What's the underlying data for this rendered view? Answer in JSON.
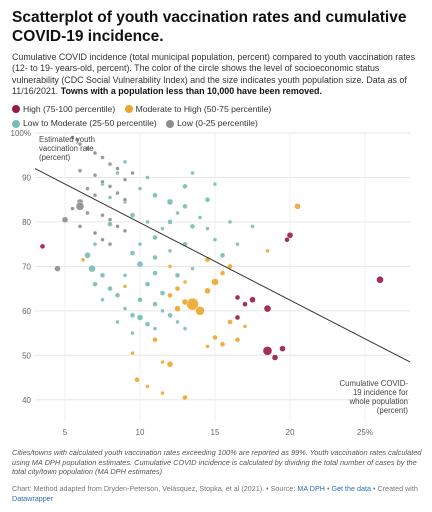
{
  "title": "Scatterplot of youth vaccination rates and cumulative COVID-19 incidence.",
  "description": "Cumulative COVID incidence (total municipal population, percent) compared to youth vaccination rates (12- to 19- years-old, percent). The color of the circle shows the level of socioeconomic status vulnerability (CDC Social Vulnerability Index) and the size indicates youth population size. Data as of 11/16/2021.",
  "description_bold": "Towns with a population less than 10,000 have been removed.",
  "legend": [
    {
      "label": "High (75-100 percentile)",
      "color": "#9b1746"
    },
    {
      "label": "Moderate to High (50-75 percentile)",
      "color": "#eda52b"
    },
    {
      "label": "Low to Moderate (25-50 percentile)",
      "color": "#76bdb5"
    },
    {
      "label": "Low (0-25 percentile)",
      "color": "#8d8d8d"
    }
  ],
  "notes": "Cities/towns with calculated youth vaccination rates exceeding 100% are reported as 99%. Youth vaccination rates calculated using MA DPH population estimates. Cumulative COVID incidence is calculated by dividing the total number of cases by the total city/town population (MA DPH estimates)",
  "footer": {
    "prefix": "Chart: Method adapted from Dryden-Peterson, Velásquez, Stopka, et al (2021). • Source: ",
    "source_link": "MA DPH",
    "sep": " • ",
    "data_link": "Get the data",
    "created": " • Created with ",
    "tool_link": "Datawrapper"
  },
  "chart_data": {
    "type": "scatter",
    "xlabel": "Cumulative COVID-19 incidence for whole population (percent)",
    "xlabel_lines": [
      "Cumulative COVID-",
      "19 incidence for",
      "whole population",
      "(percent)"
    ],
    "ylabel": "Estimated youth vaccination rate (percent)",
    "ylabel_lines": [
      "Estimated youth",
      "vaccination rate",
      "(percent)"
    ],
    "xlim": [
      3,
      28
    ],
    "ylim": [
      35,
      100
    ],
    "x_ticks": [
      5,
      10,
      15,
      20,
      25
    ],
    "x_tick_labels": [
      "5",
      "10",
      "15",
      "20",
      "25%"
    ],
    "y_ticks": [
      40,
      50,
      60,
      70,
      80,
      90,
      100
    ],
    "y_tick_labels": [
      "40",
      "50",
      "60",
      "70",
      "80",
      "90",
      "100%"
    ],
    "trend_line": {
      "x": [
        3,
        28
      ],
      "y": [
        92.0,
        48.5
      ]
    },
    "series": [
      {
        "name": "High (75-100 percentile)",
        "color": "#9b1746",
        "points": [
          [
            3.5,
            74.5,
            2.5
          ],
          [
            20.0,
            77.0,
            3
          ],
          [
            19.8,
            76.0,
            2.5
          ],
          [
            26.0,
            67.0,
            3.5
          ],
          [
            18.5,
            60.5,
            3.5
          ],
          [
            17.5,
            62.5,
            3
          ],
          [
            17.0,
            61.5,
            2.5
          ],
          [
            16.5,
            58.5,
            2.5
          ],
          [
            18.5,
            51.0,
            4.5
          ],
          [
            19.0,
            49.5,
            3
          ],
          [
            19.5,
            51.5,
            3
          ],
          [
            16.5,
            63.0,
            2.5
          ]
        ]
      },
      {
        "name": "Moderate to High (50-75 percentile)",
        "color": "#eda52b",
        "points": [
          [
            13.5,
            61.5,
            6
          ],
          [
            14.0,
            60.0,
            4.5
          ],
          [
            12.5,
            60.5,
            3
          ],
          [
            13.0,
            62.0,
            3
          ],
          [
            14.5,
            64.5,
            3
          ],
          [
            15.0,
            66.5,
            3.5
          ],
          [
            15.5,
            68.5,
            2.5
          ],
          [
            14.5,
            71.5,
            2.5
          ],
          [
            16.0,
            70.0,
            2.5
          ],
          [
            12.5,
            65.0,
            2.5
          ],
          [
            12.0,
            63.5,
            2.5
          ],
          [
            13.0,
            66.5,
            2
          ],
          [
            16.0,
            57.5,
            2.5
          ],
          [
            17.0,
            56.5,
            2
          ],
          [
            15.0,
            54.0,
            2.5
          ],
          [
            16.5,
            53.5,
            2.5
          ],
          [
            15.5,
            52.5,
            2.5
          ],
          [
            14.5,
            52.0,
            2
          ],
          [
            11.0,
            53.5,
            2.5
          ],
          [
            9.5,
            50.5,
            2
          ],
          [
            12.0,
            48.0,
            3
          ],
          [
            11.5,
            48.5,
            2
          ],
          [
            9.8,
            44.5,
            2.5
          ],
          [
            10.5,
            43.0,
            2
          ],
          [
            11.5,
            41.5,
            2
          ],
          [
            13.0,
            40.5,
            2.5
          ],
          [
            20.5,
            83.5,
            3
          ],
          [
            18.5,
            73.5,
            2
          ],
          [
            7.0,
            77.5,
            2
          ],
          [
            6.2,
            71.5,
            2
          ],
          [
            9.0,
            65.5,
            2
          ],
          [
            12.0,
            70.0,
            2
          ]
        ]
      },
      {
        "name": "Low to Moderate (25-50 percentile)",
        "color": "#76bdb5",
        "points": [
          [
            6.5,
            72.5,
            3
          ],
          [
            6.8,
            69.5,
            3.5
          ],
          [
            7.5,
            68.0,
            2.5
          ],
          [
            7.0,
            66.0,
            2.5
          ],
          [
            8.0,
            65.0,
            2.5
          ],
          [
            7.5,
            62.5,
            2
          ],
          [
            8.5,
            63.5,
            2.5
          ],
          [
            9.0,
            60.5,
            2
          ],
          [
            9.5,
            59.0,
            2.5
          ],
          [
            10.0,
            58.5,
            3
          ],
          [
            10.5,
            57.0,
            2.5
          ],
          [
            11.0,
            56.0,
            2
          ],
          [
            9.5,
            55.0,
            2
          ],
          [
            8.5,
            57.5,
            2
          ],
          [
            10.0,
            62.5,
            2.5
          ],
          [
            11.0,
            61.5,
            2.5
          ],
          [
            11.5,
            60.0,
            2
          ],
          [
            12.0,
            59.0,
            2.5
          ],
          [
            12.5,
            57.5,
            2
          ],
          [
            13.0,
            56.0,
            2
          ],
          [
            10.5,
            66.0,
            2.5
          ],
          [
            11.0,
            68.5,
            2.5
          ],
          [
            10.0,
            70.5,
            3
          ],
          [
            9.5,
            73.0,
            2.5
          ],
          [
            10.0,
            75.0,
            2
          ],
          [
            11.0,
            76.5,
            2.5
          ],
          [
            11.5,
            78.5,
            2
          ],
          [
            12.0,
            80.0,
            2.5
          ],
          [
            12.5,
            82.0,
            2
          ],
          [
            13.0,
            83.5,
            2.5
          ],
          [
            14.0,
            81.0,
            2
          ],
          [
            13.5,
            79.0,
            2.5
          ],
          [
            14.5,
            78.5,
            2
          ],
          [
            15.0,
            76.0,
            2
          ],
          [
            13.0,
            75.0,
            2.5
          ],
          [
            12.0,
            73.5,
            2
          ],
          [
            11.0,
            72.0,
            2.5
          ],
          [
            10.5,
            80.0,
            2
          ],
          [
            9.5,
            81.5,
            2.5
          ],
          [
            9.0,
            84.5,
            2
          ],
          [
            10.0,
            87.5,
            2
          ],
          [
            10.5,
            90.0,
            2
          ],
          [
            11.0,
            86.0,
            2.5
          ],
          [
            12.0,
            84.5,
            3
          ],
          [
            13.0,
            88.0,
            2.5
          ],
          [
            13.5,
            91.0,
            2
          ],
          [
            14.5,
            85.0,
            2.5
          ],
          [
            15.0,
            88.5,
            2
          ],
          [
            8.0,
            85.5,
            2
          ],
          [
            7.5,
            88.5,
            2
          ],
          [
            8.5,
            91.0,
            2
          ],
          [
            9.0,
            93.5,
            2
          ],
          [
            16.0,
            80.0,
            2
          ],
          [
            17.5,
            79.0,
            2
          ],
          [
            15.5,
            72.5,
            2.5
          ],
          [
            16.5,
            75.0,
            2
          ],
          [
            8.0,
            79.5,
            2.5
          ],
          [
            7.0,
            75.0,
            2
          ],
          [
            12.5,
            68.0,
            2.5
          ],
          [
            13.5,
            69.5,
            2
          ],
          [
            11.5,
            64.0,
            2.5
          ],
          [
            9.0,
            68.0,
            2
          ]
        ]
      },
      {
        "name": "Low (0-25 percentile)",
        "color": "#8d8d8d",
        "points": [
          [
            5.5,
            99.0,
            2
          ],
          [
            5.8,
            98.5,
            2
          ],
          [
            6.0,
            97.5,
            2
          ],
          [
            6.5,
            96.5,
            2
          ],
          [
            7.0,
            95.5,
            2
          ],
          [
            7.5,
            94.5,
            2
          ],
          [
            8.0,
            93.0,
            2
          ],
          [
            8.5,
            92.0,
            2
          ],
          [
            6.0,
            91.5,
            2
          ],
          [
            7.0,
            90.5,
            2
          ],
          [
            7.5,
            89.0,
            2
          ],
          [
            8.0,
            88.0,
            2
          ],
          [
            9.0,
            89.5,
            2
          ],
          [
            9.5,
            91.0,
            2
          ],
          [
            6.5,
            87.5,
            2
          ],
          [
            7.0,
            86.0,
            2
          ],
          [
            8.5,
            86.5,
            2
          ],
          [
            9.0,
            85.0,
            2
          ],
          [
            6.0,
            84.5,
            3
          ],
          [
            5.5,
            83.0,
            2
          ],
          [
            6.5,
            82.0,
            2
          ],
          [
            7.5,
            81.5,
            2
          ],
          [
            8.0,
            80.5,
            2
          ],
          [
            8.5,
            79.0,
            2
          ],
          [
            9.0,
            78.0,
            2
          ],
          [
            7.0,
            77.5,
            2
          ],
          [
            7.5,
            76.0,
            2
          ],
          [
            8.0,
            75.0,
            2
          ],
          [
            6.0,
            79.0,
            2
          ],
          [
            4.5,
            69.5,
            3
          ],
          [
            6.0,
            83.5,
            4
          ],
          [
            5.0,
            80.5,
            3
          ]
        ]
      }
    ]
  }
}
